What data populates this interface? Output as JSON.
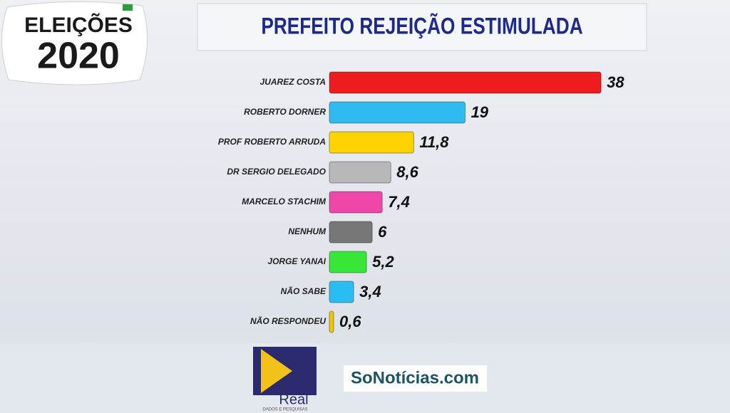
{
  "chart_data": {
    "type": "hbar",
    "title": "PREFEITO REJEIÇÃO ESTIMULADA",
    "categories": [
      "JUAREZ COSTA",
      "ROBERTO DORNER",
      "PROF ROBERTO ARRUDA",
      "DR SERGIO DELEGADO",
      "MARCELO STACHIM",
      "NENHUM",
      "JORGE YANAI",
      "NÃO SABE",
      "NÃO RESPONDEU"
    ],
    "values": [
      38,
      19,
      11.8,
      8.6,
      7.4,
      6,
      5.2,
      3.4,
      0.6
    ],
    "value_labels": [
      "38",
      "19",
      "11,8",
      "8,6",
      "7,4",
      "6",
      "5,2",
      "3,4",
      "0,6"
    ],
    "colors": [
      "#ee1c1c",
      "#2fbbef",
      "#ffd200",
      "#b8b8b8",
      "#ee47a8",
      "#777777",
      "#37e637",
      "#2bbcf2",
      "#f2c400"
    ]
  },
  "logo": {
    "line1": "ELEIÇÕES",
    "line2": "2020"
  },
  "footer": {
    "brand": "Real",
    "brand_sub": "DADOS E PESQUISAS",
    "site": "SoNotícias.com"
  }
}
